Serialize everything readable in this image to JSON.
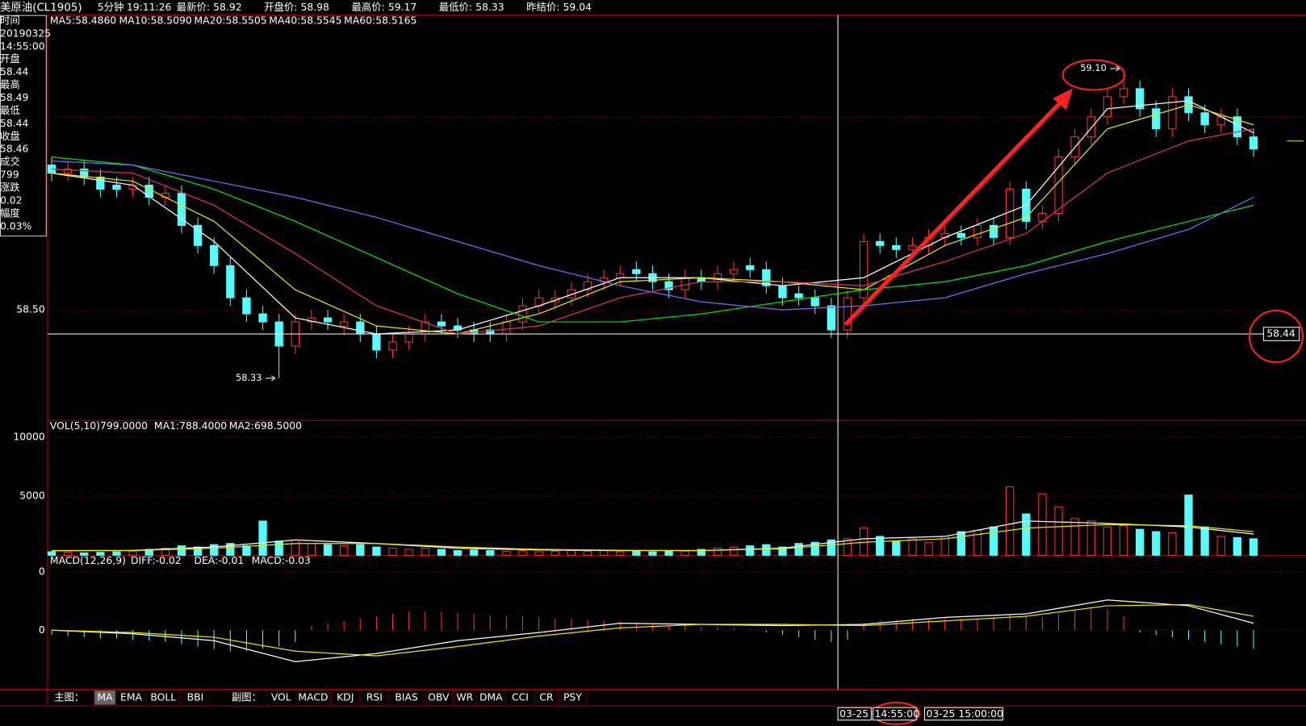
{
  "header": {
    "title": "美原油(CL1905)",
    "period": "5分钟",
    "time": "19:11:26",
    "fields": [
      {
        "label": "最新价:",
        "value": 58.92,
        "color": "#ff3232"
      },
      {
        "label": "开盘价:",
        "value": 58.98,
        "color": "#ffffff"
      },
      {
        "label": "最高价:",
        "value": 59.17,
        "color": "#ff3232"
      },
      {
        "label": "最低价:",
        "value": 58.33,
        "color": "#ff3232"
      },
      {
        "label": "昨结价:",
        "value": 59.04,
        "color": "#ff3232"
      }
    ]
  },
  "info_panel": [
    {
      "text": "时间",
      "color": "#ffffff"
    },
    {
      "text": "20190325",
      "color": "#ffffff"
    },
    {
      "text": "14:55:00",
      "color": "#ffffff"
    },
    {
      "text": "开盘",
      "color": "#ffffff"
    },
    {
      "text": "58.44",
      "color": "#ffffff"
    },
    {
      "text": "最高",
      "color": "#ffffff"
    },
    {
      "text": "58.49",
      "color": "#ff3232"
    },
    {
      "text": "最低",
      "color": "#ffffff"
    },
    {
      "text": "58.44",
      "color": "#ffffff"
    },
    {
      "text": "收盘",
      "color": "#ffffff"
    },
    {
      "text": "58.46",
      "color": "#ff3232"
    },
    {
      "text": "成交",
      "color": "#ffffff"
    },
    {
      "text": "799",
      "color": "#ffff00"
    },
    {
      "text": "涨跌",
      "color": "#ffffff"
    },
    {
      "text": "0.02",
      "color": "#ff3232"
    },
    {
      "text": "幅度",
      "color": "#ffffff"
    },
    {
      "text": "0.03%",
      "color": "#00e600"
    }
  ],
  "chart_data": [
    {
      "type": "candlestick",
      "up_color": "#ff3232",
      "down_color": "#54fcfc",
      "ylim": [
        58.225,
        59.233
      ],
      "yticks": [
        {
          "value": 58.5,
          "label": "58.50"
        }
      ],
      "grid": true,
      "open": [
        58.86,
        58.84,
        58.85,
        58.83,
        58.81,
        58.8,
        58.81,
        58.78,
        58.79,
        58.71,
        58.66,
        58.61,
        58.53,
        58.49,
        58.47,
        58.41,
        58.47,
        58.48,
        58.46,
        58.47,
        58.44,
        58.4,
        58.42,
        58.44,
        58.47,
        58.46,
        58.45,
        58.45,
        58.44,
        58.47,
        58.51,
        58.52,
        58.53,
        58.55,
        58.57,
        58.58,
        58.6,
        58.59,
        58.57,
        58.55,
        58.58,
        58.57,
        58.59,
        58.61,
        58.6,
        58.56,
        58.54,
        58.53,
        58.51,
        58.45,
        58.53,
        58.67,
        58.66,
        58.65,
        58.66,
        58.68,
        58.69,
        58.68,
        58.71,
        58.68,
        58.8,
        58.72,
        58.74,
        58.88,
        58.93,
        58.98,
        59.03,
        59.05,
        59.0,
        58.95,
        59.03,
        58.99,
        58.96,
        58.98,
        58.93
      ],
      "high": [
        58.88,
        58.87,
        58.87,
        58.85,
        58.83,
        58.83,
        58.83,
        58.81,
        58.81,
        58.73,
        58.68,
        58.63,
        58.55,
        58.51,
        58.49,
        58.49,
        58.5,
        58.5,
        58.49,
        58.49,
        58.46,
        58.44,
        58.46,
        58.49,
        58.49,
        58.48,
        58.47,
        58.47,
        58.49,
        58.53,
        58.55,
        58.55,
        58.57,
        58.59,
        58.6,
        58.61,
        58.62,
        58.61,
        58.59,
        58.6,
        58.6,
        58.61,
        58.62,
        58.63,
        58.62,
        58.58,
        58.56,
        58.55,
        58.53,
        58.55,
        58.69,
        58.69,
        58.68,
        58.68,
        58.7,
        58.71,
        58.71,
        58.73,
        58.73,
        58.82,
        58.82,
        58.76,
        58.9,
        58.95,
        59.0,
        59.05,
        59.1,
        59.07,
        59.02,
        59.05,
        59.05,
        59.01,
        59.0,
        59.0,
        58.95
      ],
      "low": [
        58.82,
        58.82,
        58.81,
        58.78,
        58.78,
        58.78,
        58.76,
        58.76,
        58.69,
        58.64,
        58.59,
        58.51,
        58.47,
        58.45,
        58.33,
        58.39,
        58.45,
        58.45,
        58.44,
        58.42,
        58.38,
        58.38,
        58.4,
        58.42,
        58.44,
        58.43,
        58.42,
        58.42,
        58.42,
        58.45,
        58.49,
        58.5,
        58.51,
        58.53,
        58.55,
        58.56,
        58.57,
        58.55,
        58.53,
        58.53,
        58.55,
        58.55,
        58.57,
        58.58,
        58.54,
        58.51,
        58.51,
        58.49,
        58.43,
        58.43,
        58.51,
        58.64,
        58.63,
        58.63,
        58.64,
        58.66,
        58.66,
        58.66,
        58.66,
        58.66,
        58.7,
        58.7,
        58.72,
        58.86,
        58.91,
        58.96,
        59.01,
        58.98,
        58.93,
        58.93,
        58.97,
        58.94,
        58.94,
        58.91,
        58.88
      ],
      "close": [
        58.84,
        58.85,
        58.83,
        58.8,
        58.8,
        58.81,
        58.78,
        58.79,
        58.71,
        58.66,
        58.61,
        58.53,
        58.49,
        58.47,
        58.41,
        58.47,
        58.48,
        58.47,
        58.47,
        58.44,
        58.4,
        58.42,
        58.44,
        58.47,
        58.46,
        58.45,
        58.44,
        58.44,
        58.47,
        58.51,
        58.53,
        58.53,
        58.55,
        58.57,
        58.58,
        58.59,
        58.59,
        58.57,
        58.55,
        58.58,
        58.57,
        58.59,
        58.6,
        58.6,
        58.56,
        58.53,
        58.53,
        58.51,
        58.45,
        58.53,
        58.67,
        58.66,
        58.65,
        58.66,
        58.68,
        58.69,
        58.68,
        58.71,
        58.68,
        58.8,
        58.72,
        58.74,
        58.88,
        58.93,
        58.98,
        59.03,
        59.05,
        59.0,
        58.95,
        59.03,
        58.99,
        58.96,
        58.98,
        58.93,
        58.9
      ],
      "line_x": [
        0,
        5,
        10,
        15,
        20,
        25,
        30,
        35,
        40,
        45,
        50,
        55,
        60,
        65,
        70,
        74
      ],
      "lines": [
        {
          "label": "MA5:58.4860",
          "color": "#ffffff",
          "values": [
            58.84,
            58.81,
            58.67,
            58.48,
            58.44,
            58.45,
            58.51,
            58.58,
            58.58,
            58.56,
            58.58,
            58.68,
            58.76,
            59.0,
            59.02,
            58.94
          ]
        },
        {
          "label": "MA10:58.5090",
          "color": "#e8e800",
          "values": [
            58.84,
            58.82,
            58.72,
            58.55,
            58.46,
            58.44,
            58.49,
            58.57,
            58.58,
            58.57,
            58.55,
            58.66,
            58.73,
            58.95,
            59.01,
            58.96
          ]
        },
        {
          "label": "MA20:58.5505",
          "color": "#e0306a",
          "values": [
            58.85,
            58.84,
            58.76,
            58.64,
            58.51,
            58.44,
            58.46,
            58.53,
            58.57,
            58.57,
            58.56,
            58.62,
            58.69,
            58.84,
            58.92,
            58.95
          ]
        },
        {
          "label": "MA40:58.5545",
          "color": "#00e600",
          "values": [
            58.88,
            58.86,
            58.8,
            58.72,
            58.63,
            58.54,
            58.47,
            58.47,
            58.49,
            58.52,
            58.55,
            58.57,
            58.61,
            58.67,
            58.72,
            58.76
          ]
        },
        {
          "label": "MA60:58.5165",
          "color": "#7070ff",
          "values": [
            58.87,
            58.86,
            58.82,
            58.78,
            58.73,
            58.67,
            58.61,
            58.56,
            58.52,
            58.5,
            58.51,
            58.53,
            58.59,
            58.64,
            58.7,
            58.78
          ]
        }
      ],
      "annotations": [
        {
          "text": "59.10",
          "index": 66,
          "at": "high"
        },
        {
          "text": "58.33",
          "index": 14,
          "at": "low"
        }
      ],
      "crosshair": {
        "index": 48,
        "value": 58.44
      }
    },
    {
      "type": "volume",
      "title": "VOL(5,10)799.0000",
      "ylim": [
        0,
        11270
      ],
      "yticks": [
        5000,
        10000
      ],
      "grid": true,
      "values": [
        300,
        250,
        200,
        250,
        300,
        350,
        500,
        600,
        800,
        700,
        900,
        1000,
        800,
        2900,
        1200,
        1300,
        1000,
        900,
        800,
        900,
        700,
        600,
        500,
        600,
        500,
        400,
        450,
        400,
        350,
        400,
        300,
        350,
        400,
        350,
        400,
        300,
        350,
        300,
        400,
        350,
        500,
        600,
        700,
        800,
        900,
        700,
        1000,
        1100,
        1300,
        1400,
        2300,
        1600,
        1200,
        1400,
        1100,
        1600,
        2000,
        2100,
        2400,
        5800,
        3500,
        5200,
        4100,
        3100,
        2900,
        2400,
        2500,
        2200,
        2000,
        1900,
        5100,
        2400,
        1600,
        1500,
        1400
      ],
      "line_x": [
        0,
        5,
        10,
        15,
        20,
        25,
        30,
        35,
        40,
        45,
        50,
        55,
        60,
        65,
        70,
        74
      ],
      "lines": [
        {
          "label": "MA1:788.4000",
          "color": "#ffffff",
          "values": [
            400,
            420,
            700,
            1300,
            1000,
            600,
            450,
            400,
            400,
            600,
            1400,
            1600,
            2900,
            2700,
            2400,
            1800
          ]
        },
        {
          "label": "MA2:698.5000",
          "color": "#e8e800",
          "values": [
            380,
            400,
            600,
            1000,
            1000,
            700,
            500,
            420,
            400,
            550,
            1100,
            1400,
            2300,
            2600,
            2500,
            2000
          ]
        }
      ]
    },
    {
      "type": "macd",
      "title": "MACD(12,26,9)",
      "ylim": [
        -0.0507,
        0.0636
      ],
      "yticks": [
        {
          "value": 0.05,
          "label": "0"
        },
        0
      ],
      "grid": true,
      "values": [
        -0.004,
        -0.005,
        -0.006,
        -0.007,
        -0.007,
        -0.008,
        -0.009,
        -0.01,
        -0.012,
        -0.014,
        -0.016,
        -0.018,
        -0.018,
        -0.016,
        -0.014,
        -0.01,
        0.004,
        0.006,
        0.008,
        0.01,
        0.012,
        0.014,
        0.016,
        0.016,
        0.016,
        0.015,
        0.014,
        0.013,
        0.012,
        0.012,
        0.011,
        0.01,
        0.01,
        0.009,
        0.008,
        0.008,
        0.007,
        0.006,
        0.005,
        0.004,
        0.003,
        0.003,
        0.002,
        0.001,
        -0.002,
        -0.004,
        -0.006,
        -0.008,
        -0.01,
        -0.008,
        0.006,
        0.008,
        0.009,
        0.01,
        0.01,
        0.011,
        0.01,
        0.01,
        0.011,
        0.013,
        0.012,
        0.011,
        0.014,
        0.017,
        0.02,
        0.018,
        0.012,
        -0.002,
        -0.004,
        -0.006,
        -0.008,
        -0.01,
        -0.012,
        -0.014,
        -0.016
      ],
      "line_x": [
        0,
        5,
        10,
        15,
        20,
        25,
        30,
        35,
        40,
        45,
        50,
        55,
        60,
        65,
        70,
        74
      ],
      "lines": [
        {
          "label": "DIFF:-0.02",
          "color": "#ffffff",
          "values": [
            0.0,
            -0.003,
            -0.009,
            -0.027,
            -0.02,
            -0.009,
            -0.002,
            0.006,
            0.005,
            0.004,
            0.005,
            0.011,
            0.014,
            0.026,
            0.021,
            0.006
          ]
        },
        {
          "label": "DEA:-0.01",
          "color": "#e8e800",
          "values": [
            0.0,
            -0.002,
            -0.006,
            -0.018,
            -0.022,
            -0.014,
            -0.005,
            0.002,
            0.005,
            0.005,
            0.004,
            0.008,
            0.012,
            0.021,
            0.022,
            0.012
          ]
        }
      ],
      "tail_label": {
        "text": "MACD:-0.03",
        "color": "#e0306a"
      }
    }
  ],
  "time_bar": {
    "date": "03-25",
    "time": "14:55:00",
    "next": "03-25 15:00:00"
  },
  "toolbar": {
    "main_label": "主图：",
    "main": [
      "MA",
      "EMA",
      "BOLL",
      "BBI"
    ],
    "selected": 0,
    "sub_label": "副图：",
    "sub": [
      "VOL",
      "MACD",
      "KDJ",
      "RSI",
      "BIAS",
      "OBV",
      "WR",
      "DMA",
      "CCI",
      "CR",
      "PSY"
    ]
  }
}
